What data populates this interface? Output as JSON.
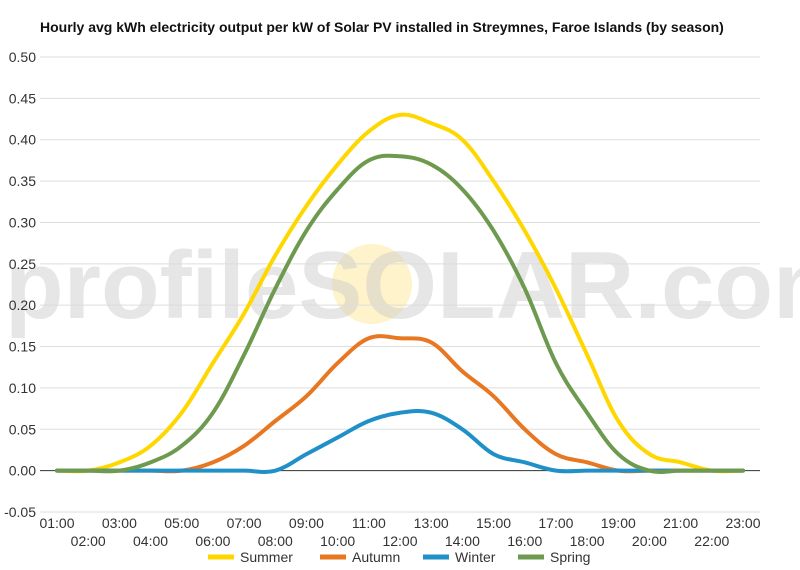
{
  "chart_data": {
    "type": "line",
    "title": "Hourly avg kWh electricity output per kW of Solar PV installed in Streymnes, Faroe Islands (by season)",
    "x": [
      "01:00",
      "02:00",
      "03:00",
      "04:00",
      "05:00",
      "06:00",
      "07:00",
      "08:00",
      "09:00",
      "10:00",
      "11:00",
      "12:00",
      "13:00",
      "14:00",
      "15:00",
      "16:00",
      "17:00",
      "18:00",
      "19:00",
      "20:00",
      "21:00",
      "22:00",
      "23:00"
    ],
    "ylim": [
      -0.05,
      0.5
    ],
    "yticks": [
      "0.50",
      "0.45",
      "0.40",
      "0.35",
      "0.30",
      "0.25",
      "0.20",
      "0.15",
      "0.10",
      "0.05",
      "0.00",
      "-0.05"
    ],
    "ytick_values": [
      0.5,
      0.45,
      0.4,
      0.35,
      0.3,
      0.25,
      0.2,
      0.15,
      0.1,
      0.05,
      0.0,
      -0.05
    ],
    "grid": true,
    "legend_position": "bottom",
    "series": [
      {
        "name": "Summer",
        "color": "#FFD700",
        "values": [
          0.0,
          0.0,
          0.01,
          0.03,
          0.07,
          0.13,
          0.19,
          0.26,
          0.32,
          0.37,
          0.41,
          0.43,
          0.42,
          0.4,
          0.35,
          0.29,
          0.22,
          0.14,
          0.06,
          0.02,
          0.01,
          0.0,
          0.0
        ]
      },
      {
        "name": "Autumn",
        "color": "#E87722",
        "values": [
          0.0,
          0.0,
          0.0,
          0.0,
          0.0,
          0.01,
          0.03,
          0.06,
          0.09,
          0.13,
          0.16,
          0.16,
          0.155,
          0.12,
          0.09,
          0.05,
          0.02,
          0.01,
          0.0,
          0.0,
          0.0,
          0.0,
          0.0
        ]
      },
      {
        "name": "Winter",
        "color": "#2090C8",
        "values": [
          0.0,
          0.0,
          0.0,
          0.0,
          0.0,
          0.0,
          0.0,
          0.0,
          0.02,
          0.04,
          0.06,
          0.07,
          0.07,
          0.05,
          0.02,
          0.01,
          0.0,
          0.0,
          0.0,
          0.0,
          0.0,
          0.0,
          0.0
        ]
      },
      {
        "name": "Spring",
        "color": "#6E9A50",
        "values": [
          0.0,
          0.0,
          0.0,
          0.01,
          0.03,
          0.07,
          0.14,
          0.22,
          0.29,
          0.34,
          0.375,
          0.38,
          0.37,
          0.34,
          0.29,
          0.22,
          0.13,
          0.07,
          0.02,
          0.0,
          0.0,
          0.0,
          0.0
        ]
      }
    ],
    "watermark": "profileSOLAR.com"
  }
}
